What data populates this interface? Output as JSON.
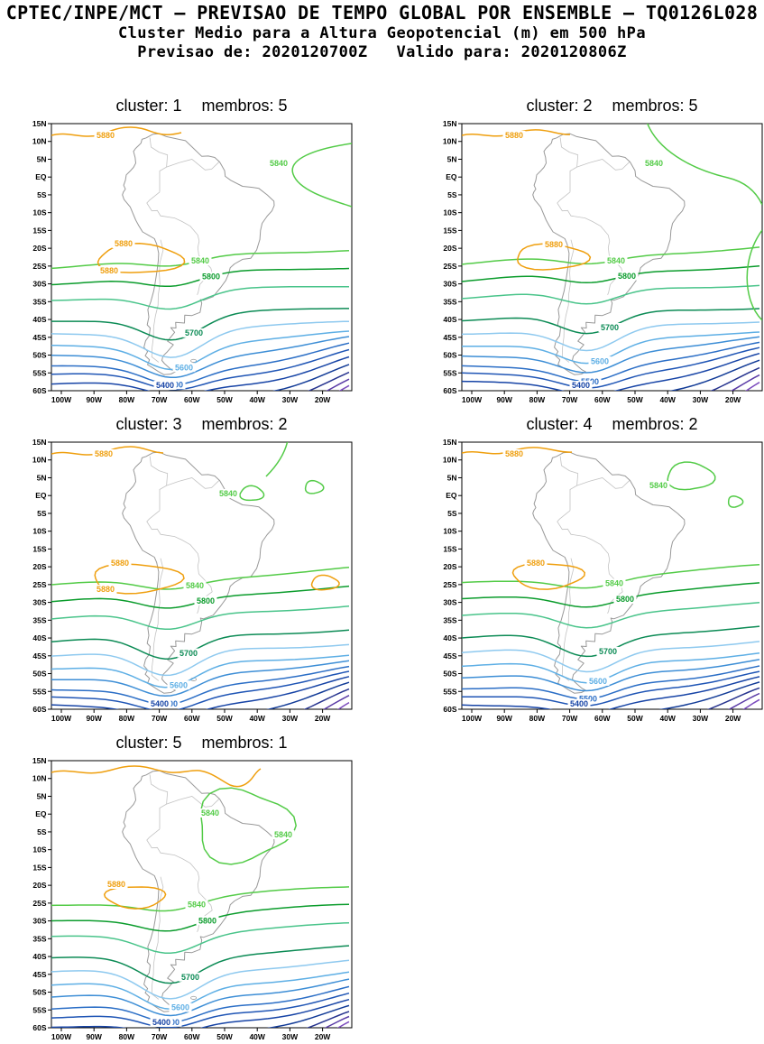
{
  "header": {
    "line1": "CPTEC/INPE/MCT — PREVISAO DE TEMPO GLOBAL POR ENSEMBLE — TQ0126L028",
    "line2": "Cluster Medio para a Altura Geopotencial (m) em 500 hPa",
    "line3_prevision": "Previsao de: 2020120700Z",
    "line3_valid": "Valido para: 2020120806Z"
  },
  "labels": {
    "cluster_prefix": "cluster:",
    "membros_prefix": "membros:"
  },
  "chart_data": {
    "type": "contour-map",
    "title": "Cluster Medio para a Altura Geopotencial (m) em 500 hPa",
    "model": "TQ0126L028",
    "forecast_from": "2020120700Z",
    "valid_for": "2020120806Z",
    "variable": "Altura Geopotencial",
    "unit": "m",
    "level_hpa": "500",
    "region": {
      "lat_top": "15N",
      "lat_bottom": "60S",
      "lon_left": "100W",
      "lon_right": "20W"
    },
    "lat_ticks": [
      "15N",
      "10N",
      "5N",
      "EQ",
      "5S",
      "10S",
      "15S",
      "20S",
      "25S",
      "30S",
      "35S",
      "40S",
      "45S",
      "50S",
      "55S",
      "60S"
    ],
    "lon_ticks": [
      "100W",
      "90W",
      "80W",
      "70W",
      "60W",
      "50W",
      "40W",
      "30W",
      "20W"
    ],
    "contour_levels": [
      {
        "value": 5880,
        "color": "#ef9f0e",
        "labeled": true
      },
      {
        "value": 5840,
        "color": "#53cb47",
        "labeled": true
      },
      {
        "value": 5800,
        "color": "#0b9c2c",
        "labeled": true
      },
      {
        "value": 5750,
        "color": "#49c48a",
        "labeled": false
      },
      {
        "value": 5700,
        "color": "#0c8b55",
        "labeled": true
      },
      {
        "value": 5650,
        "color": "#8ec9ef",
        "labeled": false
      },
      {
        "value": 5600,
        "color": "#5eafe5",
        "labeled": true
      },
      {
        "value": 5550,
        "color": "#3d8ed6",
        "labeled": false
      },
      {
        "value": 5500,
        "color": "#2b6ec6",
        "labeled": true
      },
      {
        "value": 5450,
        "color": "#1f55b5",
        "labeled": false
      },
      {
        "value": 5400,
        "color": "#1744a6",
        "labeled": true
      },
      {
        "value": 5350,
        "color": "#123b97",
        "labeled": false
      },
      {
        "value": 5300,
        "color": "#27348f",
        "labeled": false
      },
      {
        "value": 5250,
        "color": "#5a3ba6",
        "labeled": false
      },
      {
        "value": 5200,
        "color": "#7b4bbd",
        "labeled": false
      }
    ],
    "map_outline_color": "#999999",
    "country_border_color": "#c3c3c3",
    "panels": [
      {
        "cluster": "1",
        "membros": "5"
      },
      {
        "cluster": "2",
        "membros": "5"
      },
      {
        "cluster": "3",
        "membros": "2"
      },
      {
        "cluster": "4",
        "membros": "2"
      },
      {
        "cluster": "5",
        "membros": "1"
      }
    ]
  }
}
